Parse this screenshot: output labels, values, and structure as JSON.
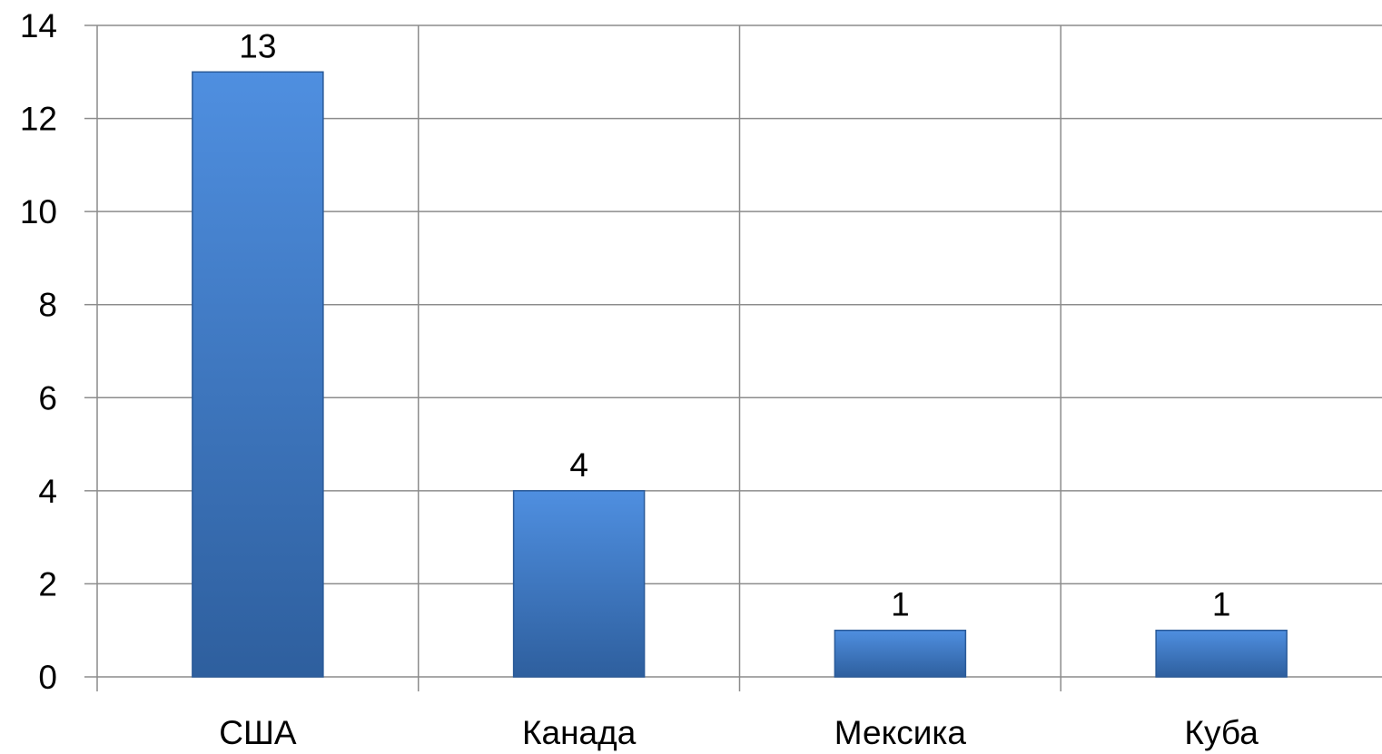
{
  "chart_data": {
    "type": "bar",
    "categories": [
      "США",
      "Канада",
      "Мексика",
      "Куба"
    ],
    "values": [
      13,
      4,
      1,
      1
    ],
    "data_labels": [
      "13",
      "4",
      "1",
      "1"
    ],
    "title": "",
    "xlabel": "",
    "ylabel": "",
    "ylim": [
      0,
      14
    ],
    "yticks": [
      0,
      2,
      4,
      6,
      8,
      10,
      12,
      14
    ],
    "ytick_labels": [
      "0",
      "2",
      "4",
      "6",
      "8",
      "10",
      "12",
      "14"
    ],
    "grid": true,
    "legend": "none",
    "colors": {
      "bar_light": "#4f8fe0",
      "bar_dark": "#2e5f9e",
      "bar_edge": "#2a5a98",
      "grid": "#8c8c8c",
      "axis": "#8c8c8c"
    }
  }
}
